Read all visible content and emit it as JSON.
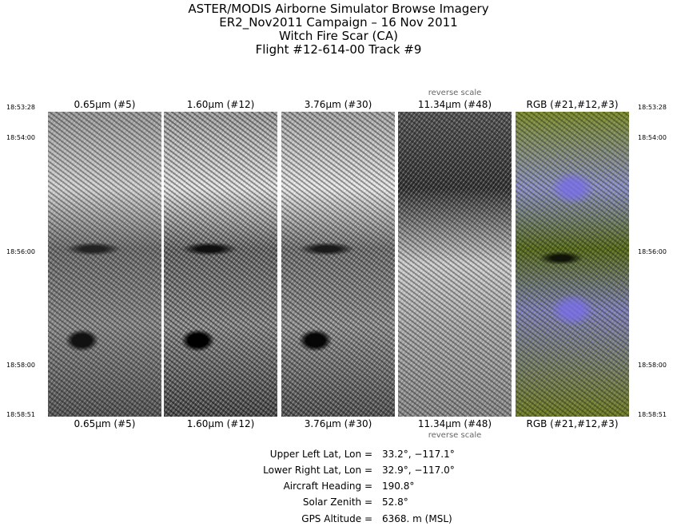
{
  "header": {
    "lines": [
      "ASTER/MODIS Airborne Simulator Browse Imagery",
      "ER2_Nov2011 Campaign – 16 Nov 2011",
      "Witch Fire Scar (CA)",
      "Flight #12-614-00 Track #9"
    ]
  },
  "panels": [
    {
      "label": "0.65μm (#5)"
    },
    {
      "label": "1.60μm (#12)"
    },
    {
      "label": "3.76μm (#30)"
    },
    {
      "label": "11.34μm (#48)",
      "note": "reverse scale"
    },
    {
      "label": "RGB (#21,#12,#3)"
    }
  ],
  "times": [
    "18:53:28",
    "18:54:00",
    "18:56:00",
    "18:58:00",
    "18:58:51"
  ],
  "info": [
    {
      "label": "Upper Left Lat, Lon =",
      "value": "33.2°, −117.1°"
    },
    {
      "label": "Lower Right Lat, Lon =",
      "value": "32.9°, −117.0°"
    },
    {
      "label": "Aircraft Heading =",
      "value": "190.8°"
    },
    {
      "label": "Solar Zenith =",
      "value": "52.8°"
    },
    {
      "label": "GPS Altitude =",
      "value": "6368. m (MSL)"
    }
  ]
}
